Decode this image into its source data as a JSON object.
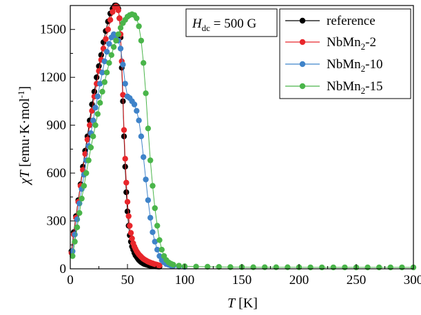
{
  "chart_data": {
    "type": "scatter",
    "annotation": {
      "prefix": "H",
      "subscript": "dc",
      "suffix": " = 500 G"
    },
    "xlabel": {
      "var": "T",
      "unit": " [K]"
    },
    "ylabel": {
      "var": "χT",
      "unit": " [emu·K·mol",
      "sup": "-1",
      "close": "]"
    },
    "xlim": [
      0,
      300
    ],
    "ylim": [
      0,
      1650
    ],
    "xticks": [
      0,
      50,
      100,
      150,
      200,
      250,
      300
    ],
    "yticks": [
      0,
      300,
      600,
      900,
      1200,
      1500
    ],
    "grid": false,
    "legend_position": "top-right",
    "series": [
      {
        "name": "reference",
        "legend": {
          "base": "reference",
          "sub": "",
          "suffix": ""
        },
        "color": "#000000",
        "x": [
          1,
          3,
          5,
          7,
          9,
          11,
          13,
          15,
          17,
          19,
          21,
          23,
          25,
          27,
          29,
          31,
          33,
          35,
          37,
          39,
          40,
          41,
          42,
          43,
          44,
          45,
          46,
          47,
          48,
          49,
          50,
          51,
          52,
          53,
          54,
          55,
          56,
          57,
          58,
          59,
          60,
          61,
          62,
          63,
          64,
          65,
          66,
          67,
          68,
          69,
          70,
          71,
          72,
          73,
          74,
          75,
          76,
          77,
          78
        ],
        "y": [
          110,
          230,
          330,
          430,
          530,
          640,
          740,
          830,
          930,
          1030,
          1110,
          1200,
          1270,
          1340,
          1420,
          1490,
          1550,
          1600,
          1630,
          1650,
          1650,
          1645,
          1630,
          1570,
          1450,
          1260,
          1050,
          830,
          640,
          480,
          360,
          270,
          210,
          170,
          140,
          120,
          100,
          85,
          75,
          65,
          55,
          48,
          42,
          37,
          33,
          30,
          27,
          25,
          23,
          21,
          20,
          19,
          18,
          17,
          16,
          15,
          15,
          14,
          14
        ]
      },
      {
        "name": "NbMn2-2",
        "legend": {
          "base": "NbMn",
          "sub": "2",
          "suffix": "-2"
        },
        "color": "#e8262b",
        "x": [
          1,
          3,
          5,
          7,
          9,
          11,
          13,
          15,
          17,
          19,
          21,
          23,
          25,
          27,
          29,
          31,
          33,
          35,
          37,
          39,
          40,
          41,
          42,
          43,
          44,
          45,
          46,
          47,
          48,
          49,
          50,
          51,
          52,
          53,
          54,
          55,
          56,
          57,
          58,
          59,
          60,
          61,
          62,
          63,
          64,
          65,
          66,
          67,
          68,
          69,
          70,
          71,
          72,
          73,
          74,
          75,
          76,
          77,
          78
        ],
        "y": [
          100,
          215,
          320,
          420,
          520,
          620,
          720,
          810,
          900,
          990,
          1080,
          1160,
          1240,
          1310,
          1380,
          1440,
          1500,
          1560,
          1610,
          1640,
          1645,
          1640,
          1620,
          1570,
          1470,
          1300,
          1090,
          870,
          690,
          540,
          420,
          330,
          270,
          225,
          190,
          160,
          140,
          125,
          110,
          100,
          90,
          82,
          75,
          68,
          62,
          57,
          53,
          49,
          45,
          42,
          39,
          36,
          34,
          31,
          29,
          27,
          25,
          23,
          21
        ]
      },
      {
        "name": "NbMn2-10",
        "legend": {
          "base": "NbMn",
          "sub": "2",
          "suffix": "-10"
        },
        "color": "#3f83c9",
        "x": [
          2,
          4,
          6,
          8,
          10,
          12,
          14,
          16,
          18,
          20,
          22,
          24,
          26,
          28,
          30,
          32,
          34,
          36,
          38,
          40,
          42,
          44,
          46,
          48,
          50,
          52,
          54,
          56,
          58,
          60,
          62,
          64,
          66,
          68,
          70,
          72,
          74,
          76,
          78,
          80,
          82,
          84,
          86,
          88,
          90,
          95,
          100
        ],
        "y": [
          110,
          215,
          310,
          410,
          500,
          590,
          680,
          770,
          850,
          930,
          1010,
          1080,
          1160,
          1230,
          1300,
          1360,
          1410,
          1450,
          1470,
          1460,
          1430,
          1380,
          1280,
          1160,
          1080,
          1070,
          1050,
          1030,
          990,
          930,
          830,
          700,
          560,
          430,
          320,
          230,
          170,
          120,
          80,
          55,
          40,
          30,
          25,
          20,
          18,
          14,
          12
        ]
      },
      {
        "name": "NbMn2-15",
        "legend": {
          "base": "NbMn",
          "sub": "2",
          "suffix": "-15"
        },
        "color": "#4ab54a",
        "x": [
          2,
          4,
          6,
          8,
          10,
          12,
          14,
          16,
          18,
          20,
          22,
          24,
          26,
          28,
          30,
          32,
          34,
          36,
          38,
          40,
          42,
          44,
          46,
          48,
          50,
          52,
          54,
          56,
          58,
          60,
          62,
          64,
          66,
          68,
          70,
          72,
          74,
          76,
          78,
          80,
          82,
          84,
          86,
          88,
          90,
          95,
          100,
          110,
          120,
          130,
          140,
          150,
          160,
          170,
          180,
          190,
          200,
          210,
          220,
          230,
          240,
          250,
          260,
          270,
          280,
          290,
          300
        ],
        "y": [
          80,
          170,
          260,
          350,
          440,
          520,
          600,
          680,
          760,
          830,
          900,
          970,
          1040,
          1110,
          1170,
          1230,
          1290,
          1340,
          1390,
          1430,
          1470,
          1510,
          1540,
          1560,
          1580,
          1590,
          1595,
          1590,
          1570,
          1520,
          1430,
          1290,
          1100,
          880,
          680,
          520,
          380,
          270,
          180,
          120,
          80,
          55,
          40,
          32,
          26,
          20,
          16,
          14,
          13,
          12,
          11,
          11,
          10,
          10,
          10,
          10,
          10,
          9,
          9,
          9,
          9,
          9,
          9,
          9,
          9,
          9,
          9
        ]
      }
    ]
  }
}
